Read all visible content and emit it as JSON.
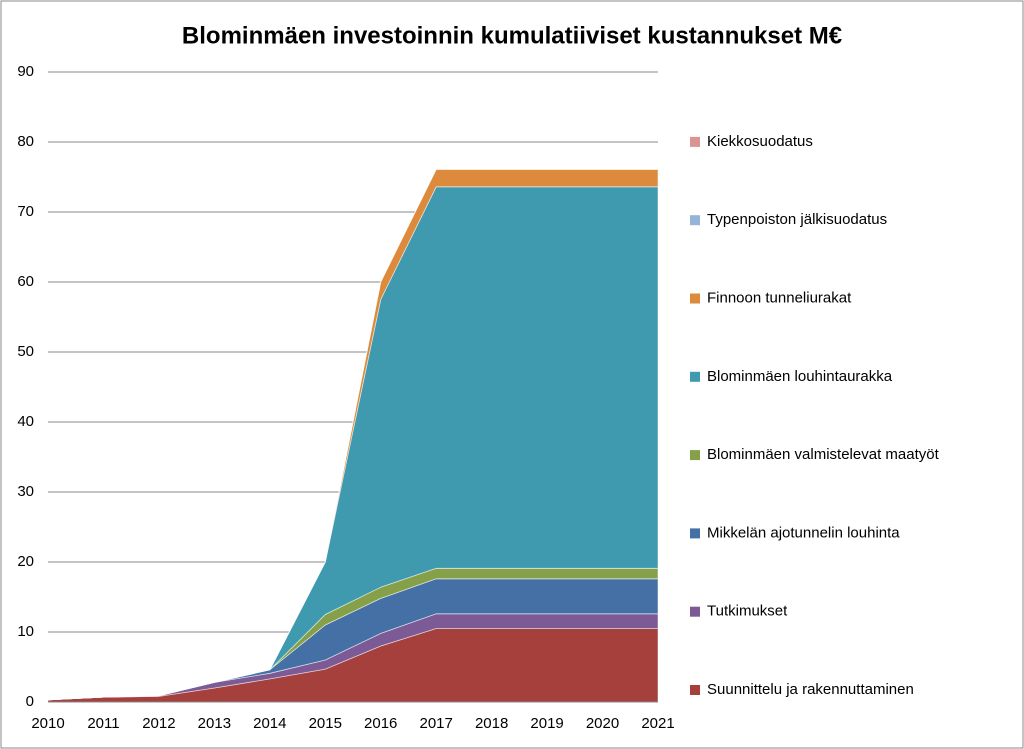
{
  "chart_data": {
    "type": "stacked-area",
    "title": "Blominmäen investoinnin kumulatiiviset  kustannukset M€",
    "categories": [
      "2010",
      "2011",
      "2012",
      "2013",
      "2014",
      "2015",
      "2016",
      "2017",
      "2018",
      "2019",
      "2020",
      "2021"
    ],
    "ylim": [
      0,
      90
    ],
    "yticks": [
      0,
      10,
      20,
      30,
      40,
      50,
      60,
      70,
      80,
      90
    ],
    "grid": true,
    "legend": "right",
    "series": [
      {
        "name": "Suunnittelu ja rakennuttaminen",
        "color": "#a5403d",
        "values": [
          0.3,
          0.7,
          0.8,
          2,
          3.3,
          4.7,
          8,
          10.5,
          10.5,
          10.5,
          10.5,
          10.5
        ]
      },
      {
        "name": "Tutkimukset",
        "color": "#7b5a96",
        "values": [
          0,
          0,
          0.1,
          0.8,
          0.8,
          1.3,
          1.8,
          2.1,
          2.1,
          2.1,
          2.1,
          2.1
        ]
      },
      {
        "name": "Mikkelän ajotunnelin louhinta",
        "color": "#4470a6",
        "values": [
          0,
          0,
          0,
          0,
          0.5,
          5,
          5,
          5,
          5,
          5,
          5,
          5
        ]
      },
      {
        "name": "Blominmäen valmistelevat maatyöt",
        "color": "#86a04a",
        "values": [
          0,
          0,
          0,
          0,
          0,
          1.5,
          1.6,
          1.5,
          1.5,
          1.5,
          1.5,
          1.5
        ]
      },
      {
        "name": "Blominmäen louhintaurakka",
        "color": "#3f9ab0",
        "values": [
          0,
          0,
          0,
          0,
          0,
          7.5,
          41.1,
          54.5,
          54.5,
          54.5,
          54.5,
          54.5
        ]
      },
      {
        "name": "Finnoon tunneliurakat",
        "color": "#dd8a3d",
        "values": [
          0,
          0,
          0,
          0,
          0,
          0,
          2.5,
          2.5,
          2.5,
          2.5,
          2.5,
          2.5
        ]
      },
      {
        "name": "Typenpoiston jälkisuodatus",
        "color": "#96b3d9",
        "values": [
          0,
          0,
          0,
          0,
          0,
          0,
          0,
          0,
          0,
          0,
          0,
          0
        ]
      },
      {
        "name": "Kiekkosuodatus",
        "color": "#d99593",
        "values": [
          0,
          0,
          0,
          0,
          0,
          0,
          0,
          0,
          0,
          0,
          0,
          0
        ]
      }
    ]
  }
}
